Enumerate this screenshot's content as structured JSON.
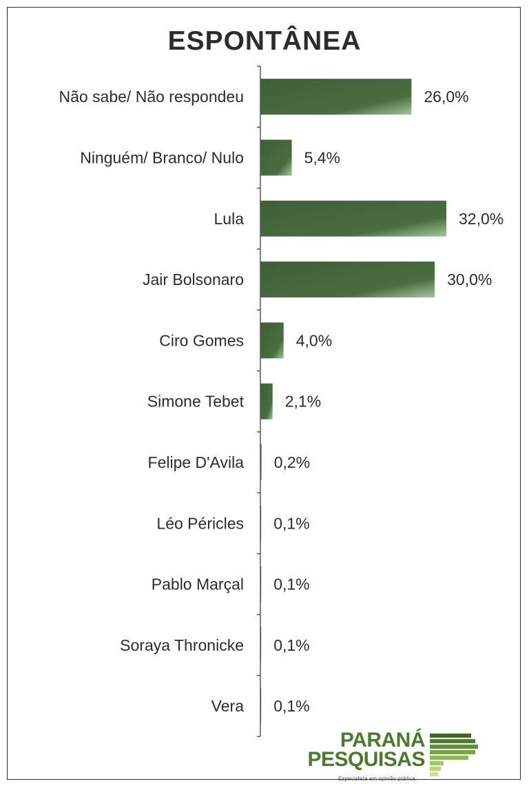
{
  "chart_data": {
    "type": "bar",
    "orientation": "horizontal",
    "title": "ESPONTÂNEA",
    "xlabel": "",
    "ylabel": "",
    "xlim": [
      0,
      32
    ],
    "grid": false,
    "legend": "none",
    "categories": [
      "Não sabe/ Não respondeu",
      "Ninguém/ Branco/ Nulo",
      "Lula",
      "Jair Bolsonaro",
      "Ciro Gomes",
      "Simone Tebet",
      "Felipe D'Avila",
      "Léo Péricles",
      "Pablo Marçal",
      "Soraya Thronicke",
      "Vera"
    ],
    "values": [
      26.0,
      5.4,
      32.0,
      30.0,
      4.0,
      2.1,
      0.2,
      0.1,
      0.1,
      0.1,
      0.1
    ],
    "data_labels": [
      "26,0%",
      "5,4%",
      "32,0%",
      "30,0%",
      "4,0%",
      "2,1%",
      "0,2%",
      "0,1%",
      "0,1%",
      "0,1%",
      "0,1%"
    ],
    "colors": {
      "bar_dark": "#3f5f37",
      "bar_light": "#8fb98a",
      "text": "#2c2c2c",
      "axis": "#555555"
    }
  },
  "logo": {
    "line1": "PARANÁ",
    "line2": "PESQUISAS",
    "tagline": "Especialista em opinião pública.",
    "color": "#4a7a2a"
  }
}
